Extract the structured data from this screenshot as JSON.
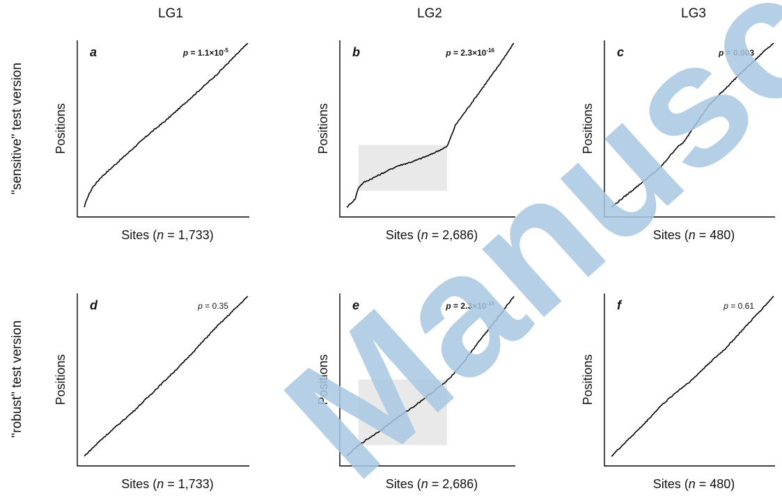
{
  "columns": [
    "LG1",
    "LG2",
    "LG3"
  ],
  "rows": [
    "\"sensitive\" test version",
    "\"robust\" test version"
  ],
  "watermark": "Manuscript",
  "chart_data": [
    {
      "type": "line",
      "panel": "a",
      "ylabel": "Positions",
      "xlabel_prefix": "Sites (",
      "xlabel_n": "n",
      "xlabel_suffix": " =  1,733)",
      "p_label": "p",
      "p_value": " = 1.1×10",
      "p_exp": "-5",
      "p_bold": true,
      "shade": null,
      "x": [
        0,
        0.02,
        0.05,
        0.1,
        0.2,
        0.3,
        0.4,
        0.5,
        0.6,
        0.7,
        0.8,
        0.9,
        0.95,
        1
      ],
      "y": [
        0,
        0.06,
        0.12,
        0.18,
        0.27,
        0.36,
        0.45,
        0.53,
        0.62,
        0.71,
        0.8,
        0.9,
        0.95,
        1
      ]
    },
    {
      "type": "line",
      "panel": "b",
      "ylabel": "Positions",
      "xlabel_prefix": "Sites (",
      "xlabel_n": "n",
      "xlabel_suffix": " = 2,686)",
      "p_label": "p",
      "p_value": " = 2.3×10",
      "p_exp": "-16",
      "p_bold": true,
      "shade": {
        "x0": 0.07,
        "x1": 0.6,
        "y0": 0.1,
        "y1": 0.38
      },
      "x": [
        0,
        0.03,
        0.05,
        0.07,
        0.1,
        0.2,
        0.3,
        0.4,
        0.5,
        0.58,
        0.6,
        0.62,
        0.65,
        0.7,
        0.8,
        0.9,
        1
      ],
      "y": [
        0,
        0.03,
        0.05,
        0.12,
        0.15,
        0.2,
        0.25,
        0.28,
        0.32,
        0.36,
        0.37,
        0.42,
        0.5,
        0.57,
        0.71,
        0.85,
        1
      ]
    },
    {
      "type": "line",
      "panel": "c",
      "ylabel": "Positions",
      "xlabel_prefix": "Sites (",
      "xlabel_n": "n",
      "xlabel_suffix": " =  480)",
      "p_label": "p",
      "p_value": " = 0.003",
      "p_exp": "",
      "p_bold": true,
      "shade": null,
      "x": [
        0,
        0.05,
        0.1,
        0.2,
        0.3,
        0.35,
        0.4,
        0.45,
        0.5,
        0.55,
        0.6,
        0.7,
        0.8,
        0.9,
        0.95,
        1
      ],
      "y": [
        0,
        0.04,
        0.08,
        0.16,
        0.24,
        0.3,
        0.36,
        0.4,
        0.48,
        0.55,
        0.62,
        0.72,
        0.82,
        0.91,
        0.96,
        1
      ]
    },
    {
      "type": "line",
      "panel": "d",
      "ylabel": "Positions",
      "xlabel_prefix": "Sites (",
      "xlabel_n": "n",
      "xlabel_suffix": " =  1,733)",
      "p_label": "p",
      "p_value": " = 0.35",
      "p_exp": "",
      "p_bold": false,
      "shade": null,
      "x": [
        0,
        0.1,
        0.2,
        0.3,
        0.4,
        0.5,
        0.6,
        0.7,
        0.8,
        0.9,
        1
      ],
      "y": [
        0,
        0.1,
        0.19,
        0.28,
        0.38,
        0.48,
        0.58,
        0.69,
        0.8,
        0.9,
        1
      ]
    },
    {
      "type": "line",
      "panel": "e",
      "ylabel": "Positions",
      "xlabel_prefix": "Sites (",
      "xlabel_n": "n",
      "xlabel_suffix": " = 2,686)",
      "p_label": "p",
      "p_value": " = 2.3×10",
      "p_exp": "-16",
      "p_bold": true,
      "shade": {
        "x0": 0.07,
        "x1": 0.6,
        "y0": 0.07,
        "y1": 0.48
      },
      "x": [
        0,
        0.05,
        0.1,
        0.2,
        0.3,
        0.4,
        0.5,
        0.6,
        0.7,
        0.8,
        0.9,
        1
      ],
      "y": [
        0,
        0.05,
        0.09,
        0.16,
        0.24,
        0.31,
        0.39,
        0.47,
        0.59,
        0.73,
        0.86,
        1
      ]
    },
    {
      "type": "line",
      "panel": "f",
      "ylabel": "Positions",
      "xlabel_prefix": "Sites (",
      "xlabel_n": "n",
      "xlabel_suffix": " =  480)",
      "p_label": "p",
      "p_value": " = 0.61",
      "p_exp": "",
      "p_bold": false,
      "shade": null,
      "x": [
        0,
        0.1,
        0.2,
        0.3,
        0.4,
        0.5,
        0.6,
        0.7,
        0.8,
        0.9,
        1
      ],
      "y": [
        0,
        0.1,
        0.2,
        0.31,
        0.4,
        0.48,
        0.58,
        0.67,
        0.78,
        0.89,
        1
      ]
    }
  ]
}
